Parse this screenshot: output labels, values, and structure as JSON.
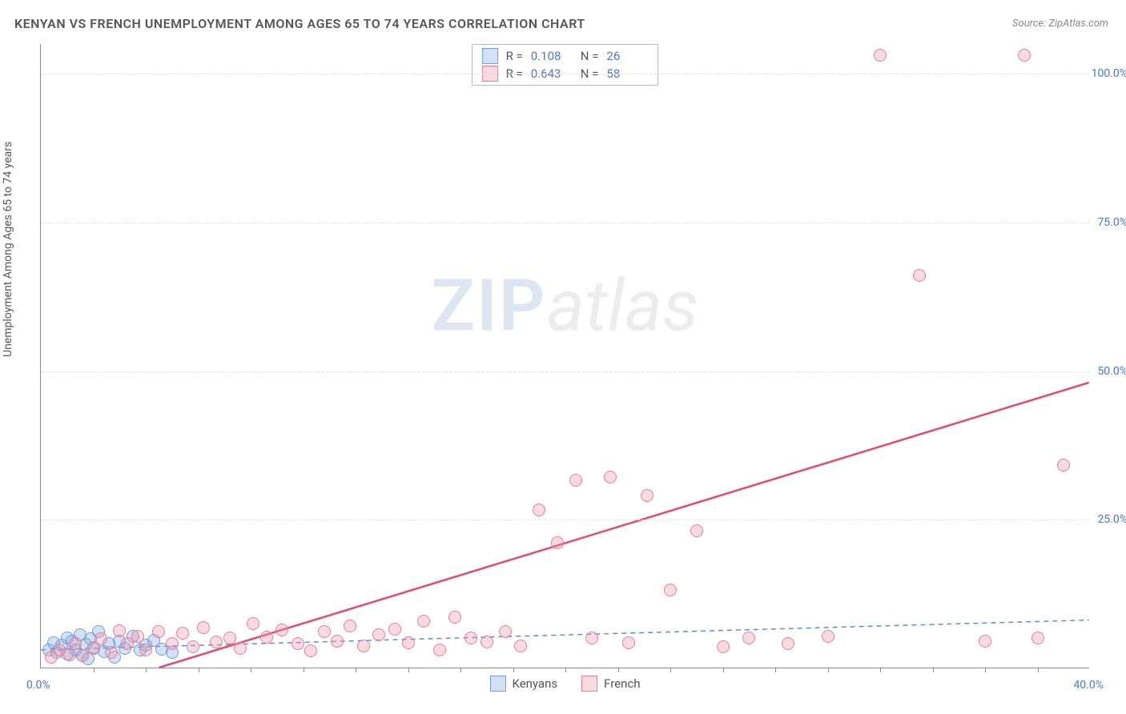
{
  "title": "KENYAN VS FRENCH UNEMPLOYMENT AMONG AGES 65 TO 74 YEARS CORRELATION CHART",
  "source": "Source: ZipAtlas.com",
  "ylabel": "Unemployment Among Ages 65 to 74 years",
  "watermark": {
    "left": "ZIP",
    "right": "atlas"
  },
  "chart": {
    "type": "scatter",
    "xlim": [
      0,
      40
    ],
    "ylim": [
      0,
      105
    ],
    "xtick_step": 2,
    "ytick_values": [
      25,
      50,
      75,
      100
    ],
    "ytick_labels": [
      "25.0%",
      "50.0%",
      "75.0%",
      "100.0%"
    ],
    "xlabel_min": "0.0%",
    "xlabel_max": "40.0%",
    "background_color": "#ffffff",
    "grid_color": "#e0e0e0",
    "marker_size": 16,
    "series": [
      {
        "name": "Kenyans",
        "key": "kenyans",
        "fill": "rgba(130,170,225,0.35)",
        "stroke": "#6f9edb",
        "R": "0.108",
        "N": "26",
        "trend": {
          "x1": 0,
          "y1": 3.0,
          "x2": 40,
          "y2": 8.0,
          "color": "#5a8fd6",
          "dash": "6,5",
          "width": 1.5
        },
        "points": [
          [
            0.3,
            3.0
          ],
          [
            0.5,
            4.2
          ],
          [
            0.6,
            2.5
          ],
          [
            0.8,
            3.8
          ],
          [
            1.0,
            5.0
          ],
          [
            1.1,
            2.2
          ],
          [
            1.2,
            4.5
          ],
          [
            1.3,
            3.0
          ],
          [
            1.5,
            5.5
          ],
          [
            1.6,
            2.0
          ],
          [
            1.7,
            3.9
          ],
          [
            1.8,
            1.5
          ],
          [
            1.9,
            4.8
          ],
          [
            2.0,
            3.2
          ],
          [
            2.2,
            6.0
          ],
          [
            2.4,
            2.7
          ],
          [
            2.6,
            4.0
          ],
          [
            2.8,
            1.8
          ],
          [
            3.0,
            4.5
          ],
          [
            3.2,
            3.3
          ],
          [
            3.5,
            5.2
          ],
          [
            3.8,
            2.9
          ],
          [
            4.0,
            3.8
          ],
          [
            4.3,
            4.6
          ],
          [
            4.6,
            3.1
          ],
          [
            5.0,
            2.6
          ]
        ]
      },
      {
        "name": "French",
        "key": "french",
        "fill": "rgba(240,150,170,0.35)",
        "stroke": "#e87d9a",
        "R": "0.643",
        "N": "58",
        "trend": {
          "x1": 4.5,
          "y1": 0,
          "x2": 40,
          "y2": 48,
          "color": "#e24a72",
          "dash": "",
          "width": 2.5
        },
        "points": [
          [
            0.4,
            1.8
          ],
          [
            0.7,
            3.0
          ],
          [
            1.0,
            2.3
          ],
          [
            1.3,
            4.0
          ],
          [
            1.6,
            2.0
          ],
          [
            2.0,
            3.4
          ],
          [
            2.3,
            4.8
          ],
          [
            2.7,
            2.6
          ],
          [
            3.0,
            6.2
          ],
          [
            3.3,
            4.0
          ],
          [
            3.7,
            5.3
          ],
          [
            4.0,
            3.0
          ],
          [
            4.5,
            6.0
          ],
          [
            5.0,
            4.1
          ],
          [
            5.4,
            5.8
          ],
          [
            5.8,
            3.5
          ],
          [
            6.2,
            6.8
          ],
          [
            6.7,
            4.3
          ],
          [
            7.2,
            5.0
          ],
          [
            7.6,
            3.2
          ],
          [
            8.1,
            7.4
          ],
          [
            8.6,
            5.1
          ],
          [
            9.2,
            6.3
          ],
          [
            9.8,
            4.0
          ],
          [
            10.3,
            2.8
          ],
          [
            10.8,
            6.0
          ],
          [
            11.3,
            4.5
          ],
          [
            11.8,
            7.0
          ],
          [
            12.3,
            3.7
          ],
          [
            12.9,
            5.5
          ],
          [
            13.5,
            6.5
          ],
          [
            14.0,
            4.2
          ],
          [
            14.6,
            7.8
          ],
          [
            15.2,
            3.0
          ],
          [
            15.8,
            8.5
          ],
          [
            16.4,
            5.0
          ],
          [
            17.0,
            4.3
          ],
          [
            17.7,
            6.0
          ],
          [
            18.3,
            3.6
          ],
          [
            19.0,
            26.5
          ],
          [
            19.7,
            21.0
          ],
          [
            20.4,
            31.5
          ],
          [
            21.0,
            5.0
          ],
          [
            21.7,
            32.0
          ],
          [
            22.4,
            4.2
          ],
          [
            23.1,
            29.0
          ],
          [
            24.0,
            13.0
          ],
          [
            25.0,
            23.0
          ],
          [
            26.0,
            3.5
          ],
          [
            27.0,
            5.0
          ],
          [
            28.5,
            4.0
          ],
          [
            30.0,
            5.3
          ],
          [
            32.0,
            103.0
          ],
          [
            33.5,
            66.0
          ],
          [
            36.0,
            4.5
          ],
          [
            37.5,
            103.0
          ],
          [
            39.0,
            34.0
          ],
          [
            38.0,
            5.0
          ]
        ]
      }
    ]
  },
  "legend_top_labels": {
    "R": "R  =",
    "N": "N  ="
  },
  "colors": {
    "axis_label": "#4a76d0",
    "text": "#555555"
  },
  "fonts": {
    "title_size": 16,
    "label_size": 14,
    "legend_size": 15
  }
}
